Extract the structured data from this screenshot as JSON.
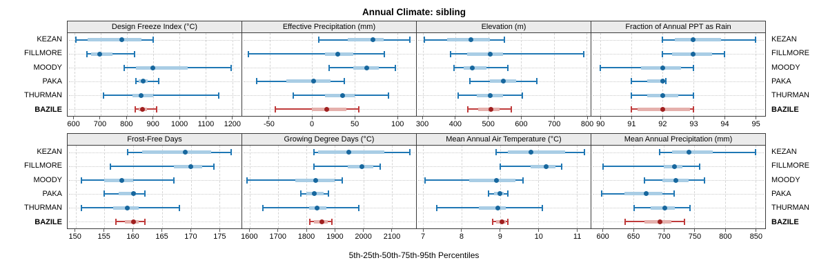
{
  "title": "Annual Climate: sibling",
  "caption": "5th-25th-50th-75th-95th Percentiles",
  "row_labels": [
    "KEZAN",
    "FILLMORE",
    "MOODY",
    "PAKA",
    "THURMAN",
    "BAZILE"
  ],
  "highlight_label": "BAZILE",
  "colors": {
    "blue_line": "#1f77b4",
    "blue_band": "#a9cde5",
    "blue_dot": "#17679e",
    "red_line": "#bf3a3a",
    "red_band": "#e5b0ac",
    "red_dot": "#a02020",
    "grid": "#d4d4d4",
    "strip_bg": "#ebebeb",
    "panel_border": "#3a3a3a"
  },
  "chart_data": {
    "type": "dotplot-with-error-bars",
    "percentiles": [
      "5th",
      "25th",
      "50th",
      "75th",
      "95th"
    ],
    "grid": "dashed-vertical-at-ticks, dotted-horizontal-per-row",
    "panels": [
      {
        "title": "Design Freeze Index (°C)",
        "xlim": [
          575,
          1235
        ],
        "ticks": [
          600,
          700,
          800,
          900,
          1000,
          1100,
          1200
        ],
        "series": [
          {
            "name": "KEZAN",
            "color": "blue",
            "values": [
              607,
              650,
              780,
              855,
              900
            ]
          },
          {
            "name": "FILLMORE",
            "color": "blue",
            "values": [
              648,
              665,
              697,
              745,
              830
            ]
          },
          {
            "name": "MOODY",
            "color": "blue",
            "values": [
              790,
              835,
              898,
              1030,
              1195
            ]
          },
          {
            "name": "PAKA",
            "color": "blue",
            "values": [
              833,
              845,
              862,
              880,
              920
            ]
          },
          {
            "name": "THURMAN",
            "color": "blue",
            "values": [
              712,
              820,
              855,
              900,
              1148
            ]
          },
          {
            "name": "BAZILE",
            "color": "red",
            "values": [
              832,
              845,
              858,
              875,
              912
            ]
          }
        ]
      },
      {
        "title": "Effective Precipitation (mm)",
        "xlim": [
          -82,
          122
        ],
        "ticks": [
          -50,
          0,
          50,
          100
        ],
        "series": [
          {
            "name": "KEZAN",
            "color": "blue",
            "values": [
              8,
              42,
              71,
              84,
              115
            ]
          },
          {
            "name": "FILLMORE",
            "color": "blue",
            "values": [
              -75,
              15,
              30,
              48,
              85
            ]
          },
          {
            "name": "MOODY",
            "color": "blue",
            "values": [
              20,
              48,
              64,
              78,
              98
            ]
          },
          {
            "name": "PAKA",
            "color": "blue",
            "values": [
              -65,
              -30,
              2,
              22,
              38
            ]
          },
          {
            "name": "THURMAN",
            "color": "blue",
            "values": [
              -22,
              15,
              36,
              50,
              90
            ]
          },
          {
            "name": "BAZILE",
            "color": "red",
            "values": [
              -43,
              0,
              17,
              40,
              55
            ]
          }
        ]
      },
      {
        "title": "Elevation (m)",
        "xlim": [
          282,
          812
        ],
        "ticks": [
          300,
          400,
          500,
          600,
          700,
          800
        ],
        "series": [
          {
            "name": "KEZAN",
            "color": "blue",
            "values": [
              305,
              375,
              448,
              505,
              550
            ]
          },
          {
            "name": "FILLMORE",
            "color": "blue",
            "values": [
              385,
              435,
              505,
              545,
              790
            ]
          },
          {
            "name": "MOODY",
            "color": "blue",
            "values": [
              395,
              425,
              452,
              495,
              560
            ]
          },
          {
            "name": "PAKA",
            "color": "blue",
            "values": [
              443,
              505,
              545,
              585,
              648
            ]
          },
          {
            "name": "THURMAN",
            "color": "blue",
            "values": [
              408,
              465,
              505,
              545,
              603
            ]
          },
          {
            "name": "BAZILE",
            "color": "red",
            "values": [
              437,
              470,
              508,
              535,
              570
            ]
          }
        ]
      },
      {
        "title": "Fraction of Annual PPT as Rain",
        "xlim": [
          89.7,
          95.32
        ],
        "ticks": [
          90,
          91,
          92,
          93,
          94,
          95
        ],
        "series": [
          {
            "name": "KEZAN",
            "color": "blue",
            "values": [
              92,
              92.4,
              93,
              93.9,
              95
            ]
          },
          {
            "name": "FILLMORE",
            "color": "blue",
            "values": [
              92,
              92.3,
              93,
              93.6,
              94
            ]
          },
          {
            "name": "MOODY",
            "color": "blue",
            "values": [
              90,
              91.3,
              92,
              92.6,
              93
            ]
          },
          {
            "name": "PAKA",
            "color": "blue",
            "values": [
              91,
              91.5,
              92,
              92.02,
              92.1
            ]
          },
          {
            "name": "THURMAN",
            "color": "blue",
            "values": [
              91,
              91.5,
              92,
              92.5,
              93
            ]
          },
          {
            "name": "BAZILE",
            "color": "red",
            "values": [
              91,
              91.2,
              92,
              92.9,
              93
            ]
          }
        ]
      },
      {
        "title": "Frost-Free Days",
        "xlim": [
          148.6,
          178.8
        ],
        "ticks": [
          150,
          155,
          160,
          165,
          170,
          175
        ],
        "series": [
          {
            "name": "KEZAN",
            "color": "blue",
            "values": [
              159,
              161.5,
              169,
              173.5,
              177
            ]
          },
          {
            "name": "FILLMORE",
            "color": "blue",
            "values": [
              156,
              167,
              170,
              172,
              174
            ]
          },
          {
            "name": "MOODY",
            "color": "blue",
            "values": [
              151,
              155,
              158,
              160,
              167
            ]
          },
          {
            "name": "PAKA",
            "color": "blue",
            "values": [
              155,
              157.5,
              160,
              160.5,
              162
            ]
          },
          {
            "name": "THURMAN",
            "color": "blue",
            "values": [
              151,
              156.5,
              159,
              161,
              168
            ]
          },
          {
            "name": "BAZILE",
            "color": "red",
            "values": [
              157,
              158.5,
              160,
              161,
              162
            ]
          }
        ]
      },
      {
        "title": "Growing Degree Days (°C)",
        "xlim": [
          1573,
          2186
        ],
        "ticks": [
          1600,
          1700,
          1800,
          1900,
          2000,
          2100
        ],
        "series": [
          {
            "name": "KEZAN",
            "color": "blue",
            "values": [
              1825,
              1840,
              1950,
              2075,
              2165
            ]
          },
          {
            "name": "FILLMORE",
            "color": "blue",
            "values": [
              1825,
              1945,
              1995,
              2035,
              2060
            ]
          },
          {
            "name": "MOODY",
            "color": "blue",
            "values": [
              1590,
              1760,
              1832,
              1900,
              1925
            ]
          },
          {
            "name": "PAKA",
            "color": "blue",
            "values": [
              1780,
              1800,
              1828,
              1860,
              1878
            ]
          },
          {
            "name": "THURMAN",
            "color": "blue",
            "values": [
              1645,
              1810,
              1838,
              1870,
              1985
            ]
          },
          {
            "name": "BAZILE",
            "color": "red",
            "values": [
              1812,
              1825,
              1855,
              1875,
              1890
            ]
          }
        ]
      },
      {
        "title": "Mean Annual Air Temperature (°C)",
        "xlim": [
          6.83,
          11.36
        ],
        "ticks": [
          7,
          8,
          9,
          10,
          11
        ],
        "series": [
          {
            "name": "KEZAN",
            "color": "blue",
            "values": [
              8.9,
              9.2,
              9.8,
              10.7,
              11.2
            ]
          },
          {
            "name": "FILLMORE",
            "color": "blue",
            "values": [
              9.0,
              9.8,
              10.2,
              10.45,
              10.6
            ]
          },
          {
            "name": "MOODY",
            "color": "blue",
            "values": [
              7.05,
              8.2,
              8.9,
              9.4,
              9.6
            ]
          },
          {
            "name": "PAKA",
            "color": "blue",
            "values": [
              8.7,
              8.85,
              9.0,
              9.1,
              9.2
            ]
          },
          {
            "name": "THURMAN",
            "color": "blue",
            "values": [
              7.35,
              8.45,
              8.95,
              9.15,
              10.1
            ]
          },
          {
            "name": "BAZILE",
            "color": "red",
            "values": [
              8.8,
              8.9,
              9.05,
              9.15,
              9.2
            ]
          }
        ]
      },
      {
        "title": "Mean Annual Precipitation (mm)",
        "xlim": [
          581,
          866
        ],
        "ticks": [
          600,
          650,
          700,
          750,
          800,
          850
        ],
        "series": [
          {
            "name": "KEZAN",
            "color": "blue",
            "values": [
              693,
              713,
              741,
              780,
              850
            ]
          },
          {
            "name": "FILLMORE",
            "color": "blue",
            "values": [
              600,
              700,
              717,
              730,
              759
            ]
          },
          {
            "name": "MOODY",
            "color": "blue",
            "values": [
              668,
              697,
              720,
              740,
              767
            ]
          },
          {
            "name": "PAKA",
            "color": "blue",
            "values": [
              598,
              635,
              671,
              697,
              717
            ]
          },
          {
            "name": "THURMAN",
            "color": "blue",
            "values": [
              651,
              678,
              702,
              718,
              743
            ]
          },
          {
            "name": "BAZILE",
            "color": "red",
            "values": [
              636,
              668,
              694,
              712,
              734
            ]
          }
        ]
      }
    ]
  }
}
